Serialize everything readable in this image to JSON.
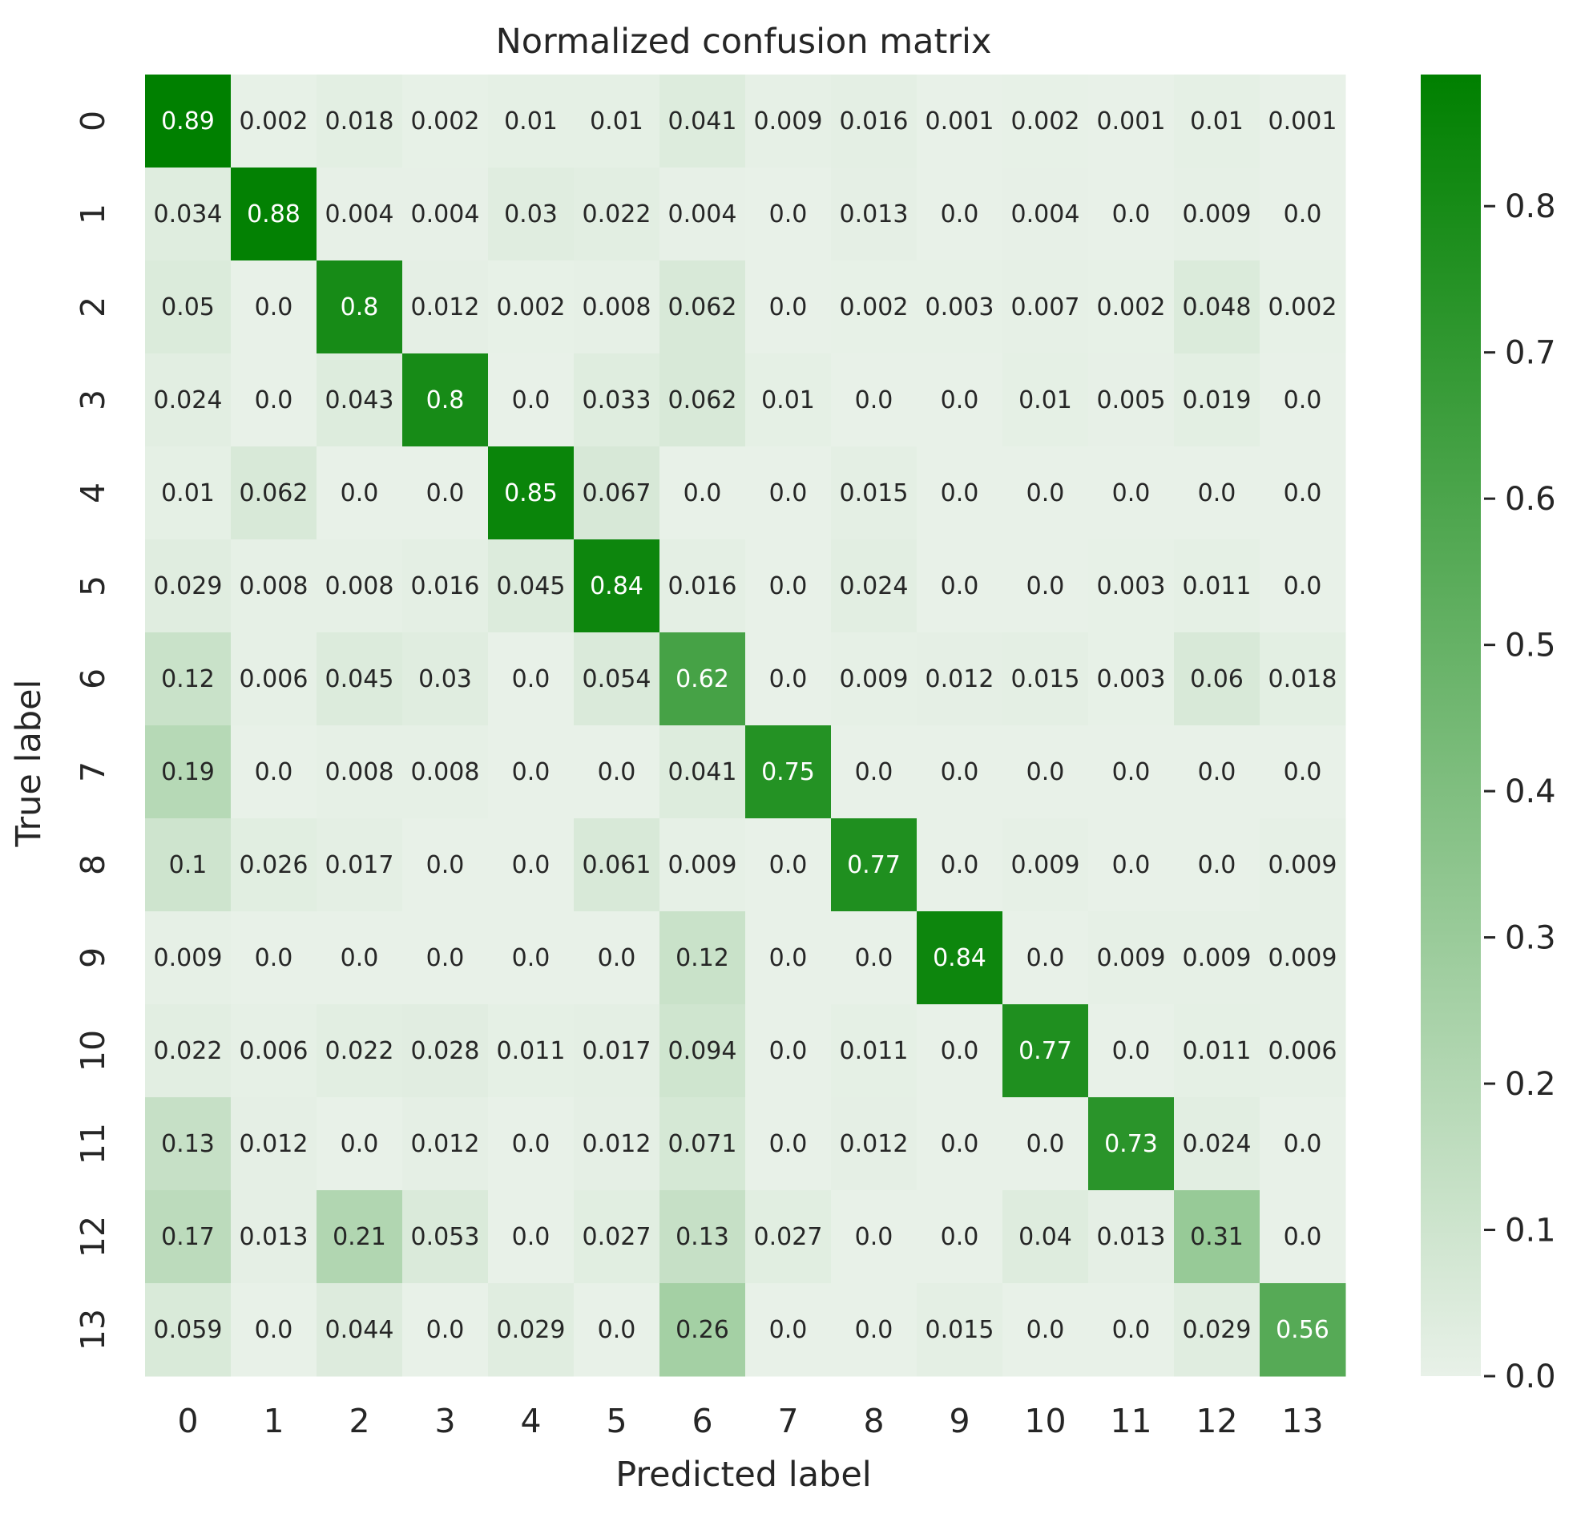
{
  "chart_data": {
    "type": "heatmap",
    "title": "Normalized confusion matrix",
    "xlabel": "Predicted label",
    "ylabel": "True label",
    "x_categories": [
      "0",
      "1",
      "2",
      "3",
      "4",
      "5",
      "6",
      "7",
      "8",
      "9",
      "10",
      "11",
      "12",
      "13"
    ],
    "y_categories": [
      "0",
      "1",
      "2",
      "3",
      "4",
      "5",
      "6",
      "7",
      "8",
      "9",
      "10",
      "11",
      "12",
      "13"
    ],
    "values": [
      [
        "0.89",
        "0.002",
        "0.018",
        "0.002",
        "0.01",
        "0.01",
        "0.041",
        "0.009",
        "0.016",
        "0.001",
        "0.002",
        "0.001",
        "0.01",
        "0.001"
      ],
      [
        "0.034",
        "0.88",
        "0.004",
        "0.004",
        "0.03",
        "0.022",
        "0.004",
        "0.0",
        "0.013",
        "0.0",
        "0.004",
        "0.0",
        "0.009",
        "0.0"
      ],
      [
        "0.05",
        "0.0",
        "0.8",
        "0.012",
        "0.002",
        "0.008",
        "0.062",
        "0.0",
        "0.002",
        "0.003",
        "0.007",
        "0.002",
        "0.048",
        "0.002"
      ],
      [
        "0.024",
        "0.0",
        "0.043",
        "0.8",
        "0.0",
        "0.033",
        "0.062",
        "0.01",
        "0.0",
        "0.0",
        "0.01",
        "0.005",
        "0.019",
        "0.0"
      ],
      [
        "0.01",
        "0.062",
        "0.0",
        "0.0",
        "0.85",
        "0.067",
        "0.0",
        "0.0",
        "0.015",
        "0.0",
        "0.0",
        "0.0",
        "0.0",
        "0.0"
      ],
      [
        "0.029",
        "0.008",
        "0.008",
        "0.016",
        "0.045",
        "0.84",
        "0.016",
        "0.0",
        "0.024",
        "0.0",
        "0.0",
        "0.003",
        "0.011",
        "0.0"
      ],
      [
        "0.12",
        "0.006",
        "0.045",
        "0.03",
        "0.0",
        "0.054",
        "0.62",
        "0.0",
        "0.009",
        "0.012",
        "0.015",
        "0.003",
        "0.06",
        "0.018"
      ],
      [
        "0.19",
        "0.0",
        "0.008",
        "0.008",
        "0.0",
        "0.0",
        "0.041",
        "0.75",
        "0.0",
        "0.0",
        "0.0",
        "0.0",
        "0.0",
        "0.0"
      ],
      [
        "0.1",
        "0.026",
        "0.017",
        "0.0",
        "0.0",
        "0.061",
        "0.009",
        "0.0",
        "0.77",
        "0.0",
        "0.009",
        "0.0",
        "0.0",
        "0.009"
      ],
      [
        "0.009",
        "0.0",
        "0.0",
        "0.0",
        "0.0",
        "0.0",
        "0.12",
        "0.0",
        "0.0",
        "0.84",
        "0.0",
        "0.009",
        "0.009",
        "0.009"
      ],
      [
        "0.022",
        "0.006",
        "0.022",
        "0.028",
        "0.011",
        "0.017",
        "0.094",
        "0.0",
        "0.011",
        "0.0",
        "0.77",
        "0.0",
        "0.011",
        "0.006"
      ],
      [
        "0.13",
        "0.012",
        "0.0",
        "0.012",
        "0.0",
        "0.012",
        "0.071",
        "0.0",
        "0.012",
        "0.0",
        "0.0",
        "0.73",
        "0.024",
        "0.0"
      ],
      [
        "0.17",
        "0.013",
        "0.21",
        "0.053",
        "0.0",
        "0.027",
        "0.13",
        "0.027",
        "0.0",
        "0.0",
        "0.04",
        "0.013",
        "0.31",
        "0.0"
      ],
      [
        "0.059",
        "0.0",
        "0.044",
        "0.0",
        "0.029",
        "0.0",
        "0.26",
        "0.0",
        "0.0",
        "0.015",
        "0.0",
        "0.0",
        "0.029",
        "0.56"
      ]
    ],
    "colorbar": {
      "min": 0.0,
      "max": 0.89,
      "ticks": [
        "0.0",
        "0.1",
        "0.2",
        "0.3",
        "0.4",
        "0.5",
        "0.6",
        "0.7",
        "0.8"
      ],
      "color_low": "#e8f1e8",
      "color_high": "#008000"
    },
    "annotation_colors": {
      "dark_text": "#262626",
      "light_text": "#ffffff"
    },
    "grid": false,
    "legend": "colorbar-right"
  }
}
